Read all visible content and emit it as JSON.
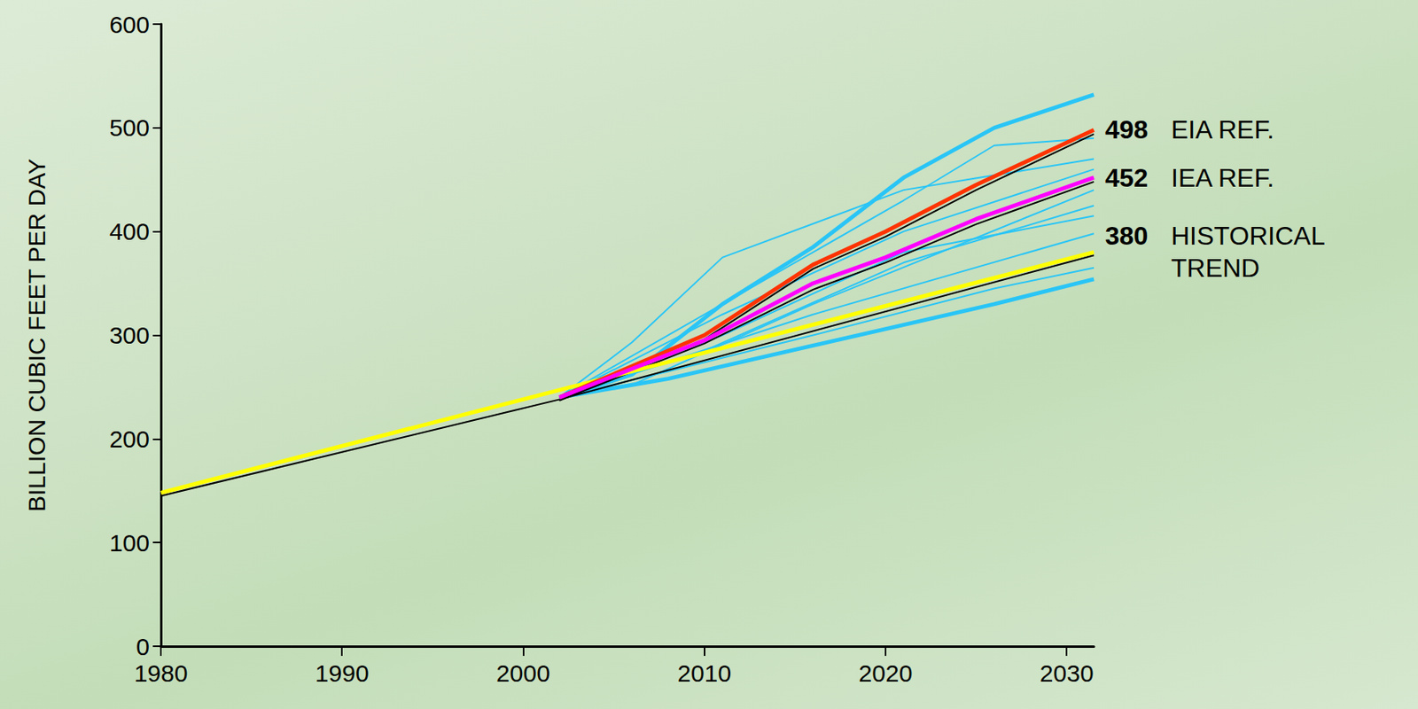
{
  "chart_data": {
    "type": "line",
    "y_label": "BILLION CUBIC FEET PER DAY",
    "xlim": [
      1980,
      2031.5
    ],
    "xticks": [
      1980,
      1990,
      2000,
      2010,
      2020,
      2030
    ],
    "ylim": [
      0,
      600
    ],
    "yticks": [
      0,
      100,
      200,
      300,
      400,
      500,
      600
    ],
    "grid": false,
    "series": [
      {
        "color": "#29c5f6",
        "line_style": "solid",
        "x": [
          2002,
          2006,
          2011,
          2021,
          2031.5
        ],
        "values": [
          240,
          293,
          375,
          440,
          470
        ]
      },
      {
        "color": "#29c5f6",
        "line_style": "solid",
        "x": [
          2002,
          2011,
          2021,
          2026,
          2031.5
        ],
        "values": [
          240,
          330,
          430,
          483,
          490
        ]
      },
      {
        "color": "#29c5f6",
        "line_style": "solid",
        "x": [
          2002,
          2011,
          2021,
          2031.5
        ],
        "values": [
          240,
          320,
          400,
          460
        ]
      },
      {
        "color": "#29c5f6",
        "line_style": "solid",
        "x": [
          2002,
          2006,
          2016,
          2031.5
        ],
        "values": [
          240,
          252,
          330,
          440
        ]
      },
      {
        "color": "#29c5f6",
        "line_style": "solid",
        "x": [
          2002,
          2011,
          2021,
          2031.5
        ],
        "values": [
          240,
          300,
          380,
          415
        ]
      },
      {
        "color": "#29c5f6",
        "line_style": "solid",
        "x": [
          2002,
          2010,
          2021,
          2031.5
        ],
        "values": [
          240,
          285,
          370,
          425
        ]
      },
      {
        "color": "#29c5f6",
        "line_style": "solid",
        "x": [
          2002,
          2016,
          2031.5
        ],
        "values": [
          240,
          320,
          398
        ]
      },
      {
        "color": "#29c5f6",
        "line_style": "solid",
        "x": [
          2002,
          2008,
          2016,
          2026,
          2031.5
        ],
        "values": [
          240,
          265,
          300,
          345,
          365
        ]
      },
      {
        "color": "#29c5f6",
        "line_style": "thick",
        "x": [
          2002,
          2006,
          2011,
          2016,
          2021,
          2026,
          2031.5
        ],
        "values": [
          240,
          262,
          330,
          385,
          452,
          500,
          532
        ]
      },
      {
        "color": "#29c5f6",
        "line_style": "thick",
        "x": [
          2002,
          2008,
          2016,
          2026,
          2031.5
        ],
        "values": [
          240,
          258,
          290,
          330,
          354
        ]
      },
      {
        "color": "#000000",
        "line_style": "solid",
        "x": [
          1980,
          2002,
          2031.5
        ],
        "values": [
          145,
          238,
          377
        ]
      },
      {
        "color": "#000000",
        "line_style": "solid",
        "x": [
          2002,
          2010,
          2016,
          2020,
          2025,
          2031.5
        ],
        "values": [
          237,
          292,
          344,
          370,
          407,
          448
        ]
      },
      {
        "color": "#000000",
        "line_style": "solid",
        "x": [
          2002,
          2010,
          2016,
          2020,
          2025,
          2031.5
        ],
        "values": [
          237,
          296,
          364,
          395,
          440,
          494
        ]
      },
      {
        "name": "HISTORICAL TREND",
        "color": "#ffff00",
        "line_style": "thick",
        "data_labels": true,
        "x": [
          1980,
          2031.5
        ],
        "values": [
          148,
          380
        ]
      },
      {
        "name": "EIA REF.",
        "color": "#ff3300",
        "line_style": "thick",
        "data_labels": true,
        "x": [
          2002,
          2010,
          2016,
          2020,
          2025,
          2031.5
        ],
        "values": [
          240,
          300,
          368,
          400,
          445,
          498
        ]
      },
      {
        "name": "IEA REF.",
        "color": "#ff00ff",
        "line_style": "thick",
        "data_labels": true,
        "x": [
          2002,
          2010,
          2016,
          2020,
          2025,
          2031.5
        ],
        "values": [
          240,
          295,
          350,
          375,
          412,
          452
        ]
      }
    ]
  }
}
